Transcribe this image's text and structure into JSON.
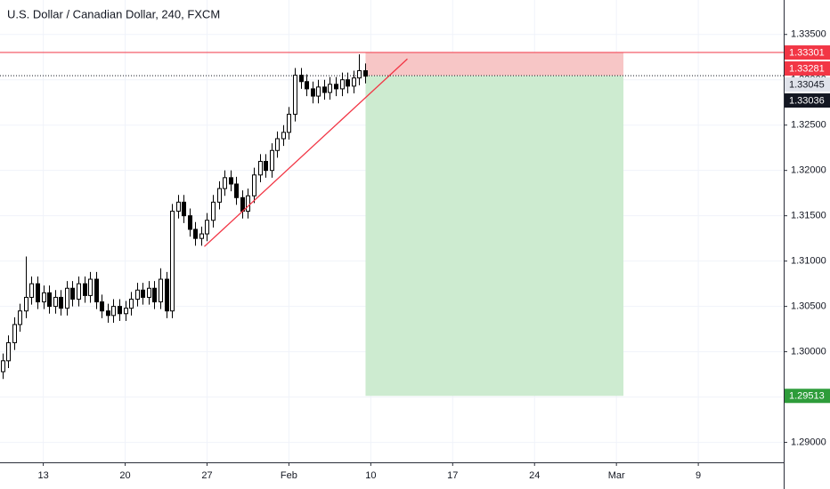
{
  "chart_data": {
    "type": "candlestick",
    "title": "U.S. Dollar / Canadian Dollar, 240, FXCM",
    "x": [
      9.5,
      10,
      10.5,
      11,
      11.5,
      12,
      12.5,
      13,
      13.5,
      14,
      14.5,
      15,
      15.5,
      16,
      16.5,
      17,
      17.5,
      18,
      18.5,
      19,
      19.5,
      20,
      20.5,
      21,
      21.5,
      22,
      22.5,
      23,
      23.5,
      24,
      24.5,
      25,
      25.5,
      26,
      26.5,
      27,
      27.5,
      28,
      28.5,
      29,
      29.5,
      30,
      30.5,
      31,
      31.5,
      32,
      32.5,
      33,
      33.5,
      34,
      34.5,
      35,
      35.5,
      36,
      36.5,
      37,
      37.5,
      38,
      38.5,
      39,
      39.5,
      40,
      40.5
    ],
    "open": [
      1.2978,
      1.299,
      1.301,
      1.303,
      1.3045,
      1.306,
      1.3075,
      1.3055,
      1.3065,
      1.305,
      1.306,
      1.3048,
      1.307,
      1.3058,
      1.3075,
      1.3062,
      1.308,
      1.3055,
      1.3045,
      1.304,
      1.305,
      1.3042,
      1.3048,
      1.3058,
      1.3068,
      1.306,
      1.307,
      1.3055,
      1.308,
      1.3045,
      1.3155,
      1.3165,
      1.315,
      1.3135,
      1.3125,
      1.313,
      1.3145,
      1.3165,
      1.318,
      1.3192,
      1.3185,
      1.317,
      1.3155,
      1.3172,
      1.3195,
      1.321,
      1.32,
      1.3222,
      1.3235,
      1.3242,
      1.3262,
      1.3305,
      1.3298,
      1.329,
      1.3282,
      1.3292,
      1.3286,
      1.3295,
      1.329,
      1.33,
      1.3293,
      1.3302,
      1.331
    ],
    "high": [
      1.2998,
      1.3018,
      1.3038,
      1.3053,
      1.3105,
      1.3083,
      1.3083,
      1.3073,
      1.3073,
      1.3068,
      1.3068,
      1.3078,
      1.3078,
      1.3083,
      1.3083,
      1.3088,
      1.3088,
      1.3063,
      1.3053,
      1.3058,
      1.3058,
      1.3056,
      1.3066,
      1.3076,
      1.3076,
      1.3078,
      1.3078,
      1.3092,
      1.3088,
      1.3163,
      1.3173,
      1.3173,
      1.3158,
      1.3143,
      1.3138,
      1.3153,
      1.3173,
      1.3188,
      1.32,
      1.32,
      1.3193,
      1.3178,
      1.318,
      1.3203,
      1.3218,
      1.3218,
      1.323,
      1.3243,
      1.325,
      1.327,
      1.3313,
      1.3313,
      1.3306,
      1.3298,
      1.33,
      1.33,
      1.3303,
      1.3303,
      1.3308,
      1.3308,
      1.331,
      1.3328,
      1.3318
    ],
    "low": [
      1.297,
      1.2982,
      1.3002,
      1.3022,
      1.3037,
      1.3052,
      1.3047,
      1.3047,
      1.3042,
      1.3042,
      1.304,
      1.304,
      1.305,
      1.305,
      1.3054,
      1.3054,
      1.3047,
      1.3037,
      1.3032,
      1.3032,
      1.3034,
      1.3034,
      1.304,
      1.305,
      1.3052,
      1.3052,
      1.3047,
      1.3047,
      1.3037,
      1.3037,
      1.3147,
      1.3142,
      1.3127,
      1.3117,
      1.3117,
      1.3122,
      1.3137,
      1.3157,
      1.3172,
      1.3177,
      1.3162,
      1.3147,
      1.3147,
      1.3164,
      1.3187,
      1.3192,
      1.3192,
      1.3214,
      1.3227,
      1.3234,
      1.3254,
      1.329,
      1.3282,
      1.3274,
      1.3274,
      1.3278,
      1.3278,
      1.3282,
      1.3282,
      1.3285,
      1.3285,
      1.3294,
      1.3296
    ],
    "close": [
      1.299,
      1.301,
      1.303,
      1.3045,
      1.306,
      1.3075,
      1.3055,
      1.3065,
      1.305,
      1.306,
      1.3048,
      1.307,
      1.3058,
      1.3075,
      1.3062,
      1.308,
      1.3055,
      1.3045,
      1.304,
      1.305,
      1.3042,
      1.3048,
      1.3058,
      1.3068,
      1.306,
      1.307,
      1.3055,
      1.308,
      1.3045,
      1.3155,
      1.3165,
      1.315,
      1.3135,
      1.3125,
      1.313,
      1.3145,
      1.3165,
      1.318,
      1.3192,
      1.3185,
      1.317,
      1.3155,
      1.3172,
      1.3195,
      1.321,
      1.32,
      1.3222,
      1.3235,
      1.3242,
      1.3262,
      1.3305,
      1.3298,
      1.329,
      1.3282,
      1.3292,
      1.3286,
      1.3295,
      1.329,
      1.33,
      1.3293,
      1.3302,
      1.331,
      1.3304
    ],
    "up_color": "#ffffff",
    "down_color": "#000000",
    "xlim": [
      9.3,
      76.3
    ],
    "ylim": [
      1.2878,
      1.3388
    ],
    "xticks": [
      13,
      20,
      27,
      {
        "value": 34,
        "label": "Feb"
      },
      {
        "value": 41,
        "label": "10"
      },
      {
        "value": 48,
        "label": "17"
      },
      {
        "value": 55,
        "label": "24"
      },
      {
        "value": 62,
        "label": "Mar"
      },
      {
        "value": 69,
        "label": "9"
      }
    ],
    "yticks": [
      {
        "value": 1.29,
        "label": "1.29000"
      },
      {
        "value": 1.295,
        "label": "1.29500"
      },
      {
        "value": 1.3,
        "label": "1.30000"
      },
      {
        "value": 1.305,
        "label": "1.30500"
      },
      {
        "value": 1.31,
        "label": "1.31000"
      },
      {
        "value": 1.315,
        "label": "1.31500"
      },
      {
        "value": 1.32,
        "label": "1.32000"
      },
      {
        "value": 1.325,
        "label": "1.32500"
      },
      {
        "value": 1.33,
        "label": "1.33000"
      },
      {
        "value": 1.335,
        "label": "1.33500"
      }
    ],
    "grid": true,
    "resistance": {
      "value": 1.33301,
      "color": "#f23645"
    },
    "last_price": {
      "value": 1.33045,
      "color": "#131722"
    },
    "trendline": {
      "x": [
        26.77,
        44.13
      ],
      "values": [
        1.3116,
        1.3323
      ],
      "color": "#f23645"
    },
    "position": {
      "start": 40.55,
      "end": 62.6,
      "stop": 1.33301,
      "entry": 1.33045,
      "target": 1.29513,
      "stop_color": "#f7c6c6",
      "target_color": "#cdebd0"
    },
    "price_labels": [
      {
        "value": 1.33301,
        "color": "#f23645",
        "text_color": "#ffffff"
      },
      {
        "value": 1.33281,
        "color": "#f23645",
        "text_color": "#ffffff"
      },
      {
        "value": 1.33045,
        "color": "#e0e3eb",
        "text_color": "#131722"
      },
      {
        "value": 1.33036,
        "color": "#131722",
        "text_color": "#ffffff"
      },
      {
        "value": 1.29513,
        "color": "#2e9c3a",
        "text_color": "#ffffff"
      }
    ]
  }
}
